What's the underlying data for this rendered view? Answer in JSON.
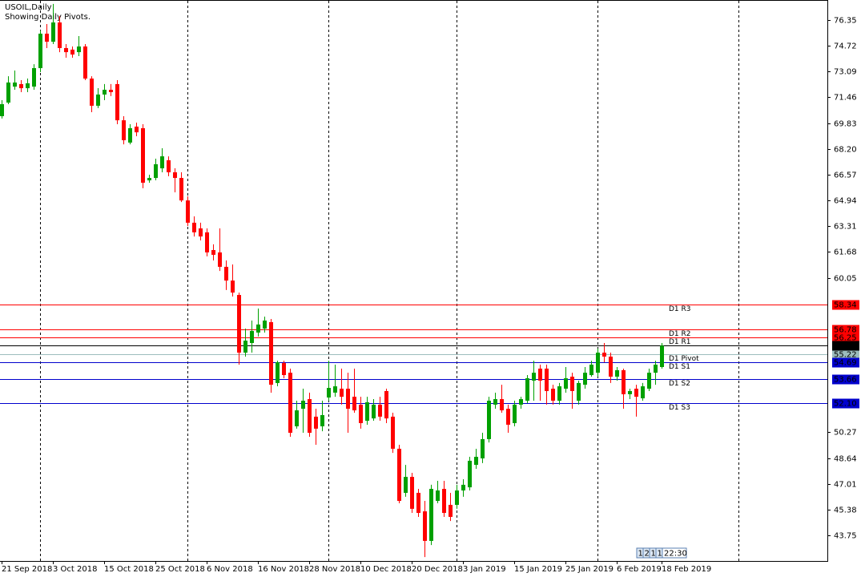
{
  "chart_data": {
    "type": "candlestick",
    "title": "USOIL,Daily",
    "subtitle": "Showing Daily Pivots.",
    "categories": [
      "21 Sep 2018",
      null,
      null,
      null,
      null,
      null,
      null,
      null,
      "3 Oct 2018",
      null,
      null,
      null,
      null,
      null,
      null,
      null,
      "15 Oct 2018",
      null,
      null,
      null,
      null,
      null,
      null,
      null,
      "25 Oct 2018",
      null,
      null,
      null,
      null,
      null,
      null,
      null,
      "6 Nov 2018",
      null,
      null,
      null,
      null,
      null,
      null,
      null,
      "16 Nov 2018",
      null,
      null,
      null,
      null,
      null,
      null,
      null,
      "28 Nov 2018",
      null,
      null,
      null,
      null,
      null,
      null,
      null,
      "10 Dec 2018",
      null,
      null,
      null,
      null,
      null,
      null,
      null,
      "20 Dec 2018",
      null,
      null,
      null,
      null,
      null,
      null,
      null,
      "3 Jan 2019",
      null,
      null,
      null,
      null,
      null,
      null,
      null,
      "15 Jan 2019",
      null,
      null,
      null,
      null,
      null,
      null,
      null,
      "25 Jan 2019",
      null,
      null,
      null,
      null,
      null,
      null,
      null,
      "6 Feb 2019",
      null,
      null,
      null,
      null,
      null,
      null,
      "18 Feb 2019"
    ],
    "series": [
      {
        "up_color": "#00a000",
        "down_color": "#ff0000",
        "open": [
          70.27,
          71.13,
          72.14,
          72.3,
          72.04,
          72.14,
          73.31,
          75.49,
          74.98,
          76.2,
          74.58,
          74.48,
          74.32,
          74.68,
          72.65,
          70.93,
          71.64,
          71.94,
          72.3,
          70.01,
          68.6,
          69.61,
          69.51,
          66.21,
          66.36,
          66.97,
          67.48,
          66.72,
          66.36,
          64.94,
          63.53,
          63.17,
          62.92,
          61.8,
          61.65,
          60.74,
          59.87,
          58.96,
          55.31,
          55.92,
          56.58,
          56.83,
          57.24,
          53.39,
          54.65,
          54.04,
          50.65,
          51.76,
          52.37,
          51.26,
          50.65,
          52.47,
          52.78,
          53.03,
          53.03,
          52.52,
          52.02,
          51.0,
          51.15,
          52.02,
          52.88,
          51.26,
          49.23,
          46.44,
          47.45,
          46.44,
          45.27,
          43.4,
          45.93,
          46.69,
          45.68,
          45.68,
          46.59,
          46.79,
          48.21,
          48.62,
          49.84,
          52.02,
          52.37,
          51.76,
          50.85,
          52.02,
          52.27,
          53.54,
          54.3,
          54.3,
          53.03,
          52.27,
          53.03,
          53.79,
          52.27,
          53.28,
          53.89,
          54.04,
          55.31,
          55.06,
          53.79,
          54.2,
          52.68,
          53.03,
          52.42,
          53.03,
          54.04,
          54.4
        ],
        "high": [
          71.28,
          72.8,
          73.16,
          72.55,
          72.65,
          73.56,
          75.69,
          76.1,
          77.37,
          76.61,
          74.83,
          74.68,
          75.34,
          74.83,
          72.8,
          72.04,
          72.3,
          72.3,
          72.55,
          70.27,
          69.76,
          69.86,
          69.76,
          66.57,
          67.58,
          68.24,
          67.73,
          66.97,
          66.72,
          65.2,
          63.93,
          63.53,
          63.17,
          62.16,
          63.17,
          61.14,
          60.89,
          59.11,
          56.83,
          57.34,
          58.1,
          57.59,
          57.44,
          54.8,
          54.8,
          54.3,
          52.27,
          53.03,
          52.78,
          51.76,
          52.27,
          54.8,
          54.55,
          54.3,
          54.04,
          54.3,
          52.52,
          52.52,
          52.37,
          52.52,
          53.03,
          51.51,
          49.48,
          48.21,
          47.71,
          46.69,
          45.93,
          46.95,
          47.2,
          47.2,
          46.44,
          46.95,
          47.3,
          48.72,
          49.23,
          50.24,
          52.52,
          52.78,
          53.28,
          52.02,
          52.27,
          52.52,
          53.89,
          54.8,
          54.55,
          54.55,
          53.28,
          53.39,
          54.4,
          54.04,
          53.54,
          54.4,
          54.8,
          55.57,
          55.92,
          55.31,
          54.4,
          54.3,
          53.03,
          53.28,
          53.39,
          54.3,
          54.8,
          55.92
        ],
        "low": [
          70.12,
          71.03,
          71.94,
          71.79,
          71.79,
          71.94,
          73.06,
          74.58,
          74.83,
          74.32,
          73.97,
          73.97,
          74.07,
          72.55,
          70.52,
          70.78,
          71.28,
          71.54,
          69.76,
          68.49,
          68.49,
          69.0,
          65.71,
          66.06,
          66.21,
          66.72,
          66.47,
          65.45,
          64.84,
          63.32,
          62.66,
          62.41,
          61.4,
          61.14,
          60.48,
          59.27,
          58.86,
          54.55,
          55.06,
          55.31,
          56.33,
          56.58,
          52.78,
          53.18,
          53.69,
          49.99,
          50.5,
          50.24,
          49.99,
          49.48,
          50.34,
          52.27,
          52.52,
          52.02,
          50.24,
          51.51,
          50.5,
          50.75,
          51.0,
          51.0,
          50.85,
          48.97,
          45.78,
          46.19,
          45.17,
          44.92,
          42.38,
          43.14,
          45.78,
          44.92,
          44.66,
          45.43,
          46.19,
          46.59,
          47.96,
          48.32,
          49.63,
          51.76,
          51.51,
          50.24,
          50.65,
          51.76,
          52.12,
          52.27,
          52.27,
          52.02,
          52.02,
          52.02,
          52.78,
          51.76,
          52.02,
          53.03,
          53.79,
          53.79,
          54.7,
          53.39,
          53.54,
          51.76,
          52.37,
          51.26,
          52.27,
          52.88,
          53.28,
          54.3
        ],
        "close": [
          71.03,
          72.4,
          72.4,
          72.04,
          72.35,
          73.31,
          75.49,
          74.98,
          76.2,
          74.58,
          74.32,
          74.17,
          74.68,
          72.65,
          70.93,
          71.64,
          71.94,
          71.79,
          70.01,
          68.75,
          69.51,
          69.25,
          66.06,
          66.36,
          67.23,
          67.73,
          66.72,
          66.36,
          64.94,
          63.53,
          62.92,
          62.66,
          61.65,
          61.5,
          60.74,
          59.87,
          59.11,
          55.31,
          56.07,
          56.68,
          57.09,
          57.34,
          53.28,
          54.7,
          53.89,
          50.24,
          51.66,
          52.27,
          50.24,
          50.5,
          51.36,
          53.08,
          53.18,
          52.52,
          51.76,
          51.66,
          50.85,
          52.17,
          52.02,
          51.26,
          51.15,
          49.23,
          45.93,
          47.45,
          45.43,
          45.17,
          43.4,
          46.69,
          46.59,
          45.17,
          44.92,
          46.59,
          46.95,
          48.47,
          48.72,
          49.84,
          52.27,
          52.37,
          51.66,
          50.75,
          52.02,
          52.37,
          53.69,
          54.04,
          53.54,
          52.88,
          52.27,
          53.18,
          53.69,
          52.88,
          53.39,
          54.04,
          54.55,
          55.31,
          55.06,
          53.79,
          54.2,
          52.68,
          52.88,
          52.52,
          53.18,
          54.04,
          54.55,
          55.75
        ]
      }
    ],
    "ylim": [
      42.13,
      77.62
    ],
    "yticks": [
      {
        "value": 76.35,
        "label": "76.35"
      },
      {
        "value": 74.72,
        "label": "74.72"
      },
      {
        "value": 73.09,
        "label": "73.09"
      },
      {
        "value": 71.46,
        "label": "71.46"
      },
      {
        "value": 69.83,
        "label": "69.83"
      },
      {
        "value": 68.2,
        "label": "68.20"
      },
      {
        "value": 66.57,
        "label": "66.57"
      },
      {
        "value": 64.94,
        "label": "64.94"
      },
      {
        "value": 63.31,
        "label": "63.31"
      },
      {
        "value": 61.68,
        "label": "61.68"
      },
      {
        "value": 60.05,
        "label": "60.05"
      },
      {
        "value": 50.27,
        "label": "50.27"
      },
      {
        "value": 48.64,
        "label": "48.64"
      },
      {
        "value": 47.01,
        "label": "47.01"
      },
      {
        "value": 45.38,
        "label": "45.38"
      },
      {
        "value": 43.75,
        "label": "43.75"
      }
    ],
    "levels": {
      "names": [
        "D1 R3",
        "D1 R2",
        "D1 R1",
        "D1 Pivot",
        "D1 S1",
        "D1 S2",
        "D1 S3"
      ],
      "values": [
        58.34,
        56.78,
        56.25,
        55.22,
        54.69,
        53.66,
        52.1
      ],
      "value_labels": [
        "58.34",
        "56.78",
        "56.25",
        "55.22",
        "54.69",
        "53.66",
        "52.10"
      ],
      "colors": [
        "#ff0000",
        "#ff0000",
        "#ff0000",
        "#9cbcbc",
        "#0000cd",
        "#0000cd",
        "#0000cd"
      ]
    },
    "bid": {
      "value": 55.75,
      "color": "#000000"
    },
    "timer_digits": [
      "1",
      "2",
      "1",
      "1"
    ],
    "timer": "22:30"
  }
}
